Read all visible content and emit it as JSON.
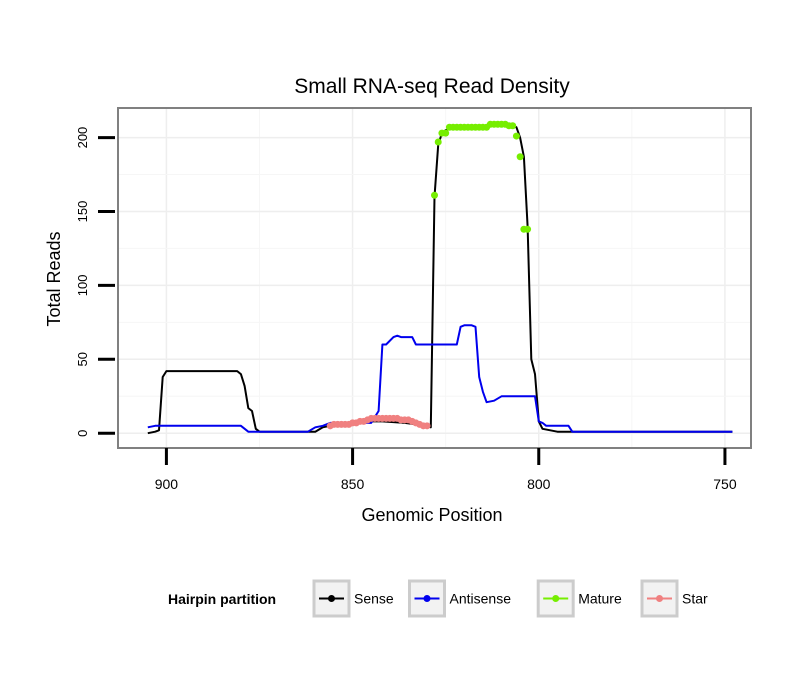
{
  "chart_data": {
    "type": "line",
    "title": "Small RNA-seq Read Density",
    "xlabel": "Genomic Position",
    "ylabel": "Total Reads",
    "xlim": [
      913,
      743
    ],
    "x_reversed": true,
    "ylim": [
      -10,
      220
    ],
    "x_ticks": [
      900,
      850,
      800,
      750
    ],
    "y_ticks": [
      0,
      50,
      100,
      150,
      200
    ],
    "grid": true,
    "legend": {
      "title": "Hairpin partition",
      "position": "bottom",
      "entries": [
        "Sense",
        "Antisense",
        "Mature",
        "Star"
      ]
    },
    "series": [
      {
        "name": "Sense",
        "color": "#000000",
        "style": "line",
        "x": [
          905,
          903,
          902,
          901,
          900,
          899,
          898,
          890,
          885,
          882,
          881,
          880,
          879,
          878,
          877,
          876,
          875,
          870,
          865,
          860,
          858,
          856,
          852,
          848,
          842,
          836,
          830,
          829,
          828,
          827,
          826,
          825,
          824,
          823,
          822,
          820,
          812,
          808,
          807,
          806,
          805,
          804,
          803,
          802,
          801,
          800,
          799,
          795,
          785,
          775,
          765,
          748
        ],
        "y": [
          0,
          1,
          2,
          38,
          42,
          42,
          42,
          42,
          42,
          42,
          42,
          40,
          32,
          17,
          15,
          3,
          1,
          1,
          1,
          1,
          4,
          5,
          7,
          8,
          8,
          7,
          5,
          4,
          160,
          195,
          203,
          205,
          206,
          207,
          207,
          207,
          208,
          208,
          208,
          207,
          200,
          187,
          140,
          50,
          40,
          8,
          3,
          1,
          1,
          1,
          1,
          1
        ]
      },
      {
        "name": "Antisense",
        "color": "#0000ee",
        "style": "line",
        "x": [
          905,
          903,
          890,
          880,
          878,
          875,
          862,
          860,
          858,
          856,
          850,
          845,
          843,
          842,
          841,
          839,
          838,
          837,
          836,
          835,
          834,
          833,
          832,
          830,
          828,
          825,
          823,
          822,
          821,
          820,
          819,
          818,
          817,
          816,
          815,
          814,
          812,
          810,
          808,
          805,
          802,
          801,
          800,
          799,
          798,
          795,
          792,
          791,
          790,
          785,
          780,
          770,
          760,
          750,
          748
        ],
        "y": [
          4,
          5,
          5,
          5,
          1,
          1,
          1,
          4,
          5,
          7,
          7,
          7,
          15,
          60,
          60,
          65,
          66,
          65,
          65,
          65,
          65,
          60,
          60,
          60,
          60,
          60,
          60,
          60,
          72,
          73,
          73,
          73,
          72,
          38,
          28,
          21,
          22,
          25,
          25,
          25,
          25,
          25,
          8,
          7,
          5,
          5,
          5,
          1,
          1,
          1,
          1,
          1,
          1,
          1,
          1
        ]
      },
      {
        "name": "Mature",
        "color": "#76ee00",
        "style": "points",
        "x": [
          828,
          827,
          826,
          825,
          824,
          823,
          822,
          821,
          820,
          819,
          818,
          817,
          816,
          815,
          814,
          813,
          812,
          811,
          810,
          809,
          808,
          807,
          806,
          805,
          804,
          803
        ],
        "y": [
          161,
          197,
          203,
          203,
          207,
          207,
          207,
          207,
          207,
          207,
          207,
          207,
          207,
          207,
          207,
          209,
          209,
          209,
          209,
          209,
          208,
          208,
          201,
          187,
          138,
          138
        ]
      },
      {
        "name": "Star",
        "color": "#f08080",
        "style": "points",
        "x": [
          856,
          855,
          854,
          853,
          852,
          851,
          850,
          849,
          848,
          847,
          846,
          845,
          844,
          843,
          842,
          841,
          840,
          839,
          838,
          837,
          836,
          835,
          834,
          833,
          832,
          831,
          830
        ],
        "y": [
          5,
          6,
          6,
          6,
          6,
          6,
          7,
          7,
          8,
          8,
          9,
          10,
          10,
          10,
          10,
          10,
          10,
          10,
          10,
          9,
          9,
          9,
          8,
          7,
          6,
          5,
          5
        ]
      }
    ]
  }
}
